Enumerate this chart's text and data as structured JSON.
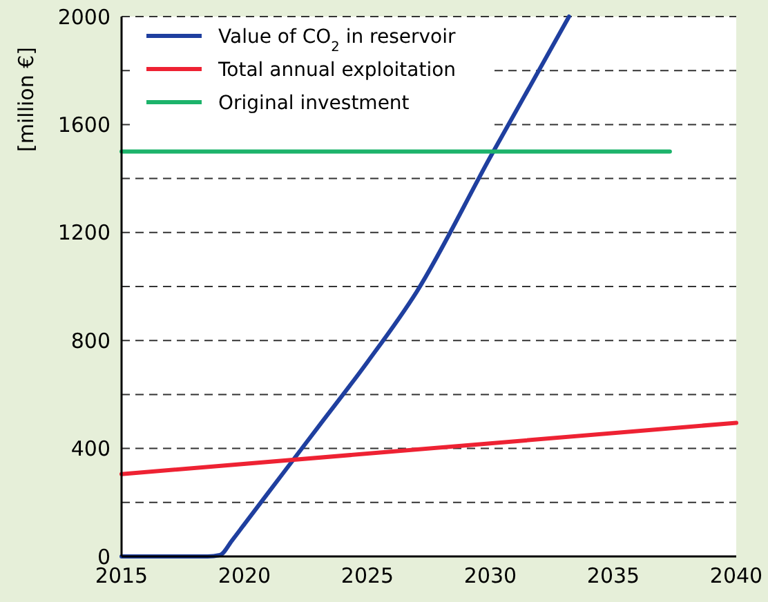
{
  "chart_data": {
    "type": "line",
    "ylabel": "[million €]",
    "xlim": [
      2015,
      2040
    ],
    "xticks": [
      2015,
      2020,
      2025,
      2030,
      2035,
      2040
    ],
    "ylim": [
      0,
      2000
    ],
    "yticks": [
      0,
      {
        "value": 200,
        "label": null
      },
      400,
      {
        "value": 600,
        "label": null
      },
      800,
      {
        "value": 1000,
        "label": null
      },
      1200,
      {
        "value": 1400,
        "label": null
      },
      1600,
      {
        "value": 1800,
        "label": null
      },
      2000
    ],
    "grid": "y",
    "legend": "top left",
    "line_style": "solid",
    "series": [
      {
        "name": "Value of CO$_{2}$ in reservoir",
        "color": "#1f3f9f",
        "x": [
          2015,
          2018.5,
          2019,
          2019.5,
          2020,
          2021,
          2022,
          2023,
          2025,
          2027,
          2030,
          2033.2
        ],
        "values": [
          0,
          0,
          5,
          60,
          120,
          240,
          360,
          480,
          720,
          980,
          1480,
          2000
        ]
      },
      {
        "name": "Total annual exploitation",
        "color": "#ee2233",
        "x": [
          2015,
          2040
        ],
        "values": [
          305,
          495
        ]
      },
      {
        "name": "Original investment",
        "color": "#1db36b",
        "x": [
          2015,
          2037.3
        ],
        "values": [
          1500,
          1500
        ]
      }
    ]
  }
}
